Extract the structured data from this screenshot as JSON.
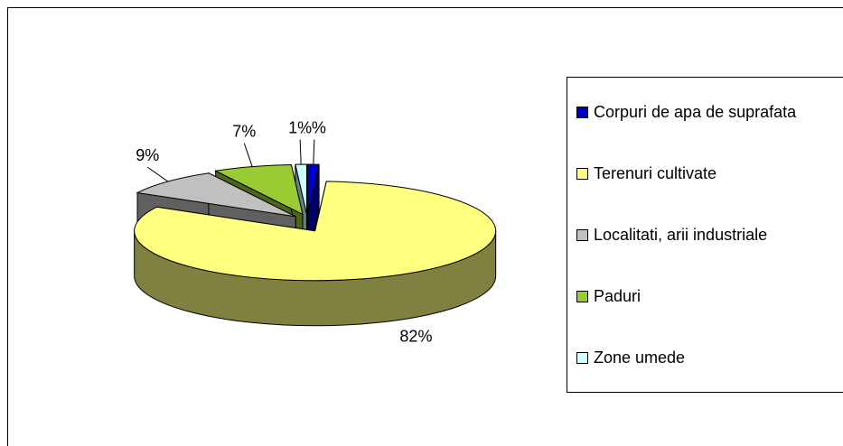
{
  "chart_data": {
    "type": "pie3d",
    "categories": [
      "Corpuri de apa de suprafata",
      "Terenuri cultivate",
      "Localitati, arii industriale",
      "Paduri",
      "Zone umede"
    ],
    "values": [
      1,
      82,
      9,
      7,
      1
    ],
    "value_labels": [
      "1%",
      "82%",
      "9%",
      "7%",
      "1%"
    ],
    "colors": [
      "#0000cc",
      "#ffff80",
      "#c0c0c0",
      "#99cc33",
      "#ccffff"
    ],
    "legend": "right"
  }
}
